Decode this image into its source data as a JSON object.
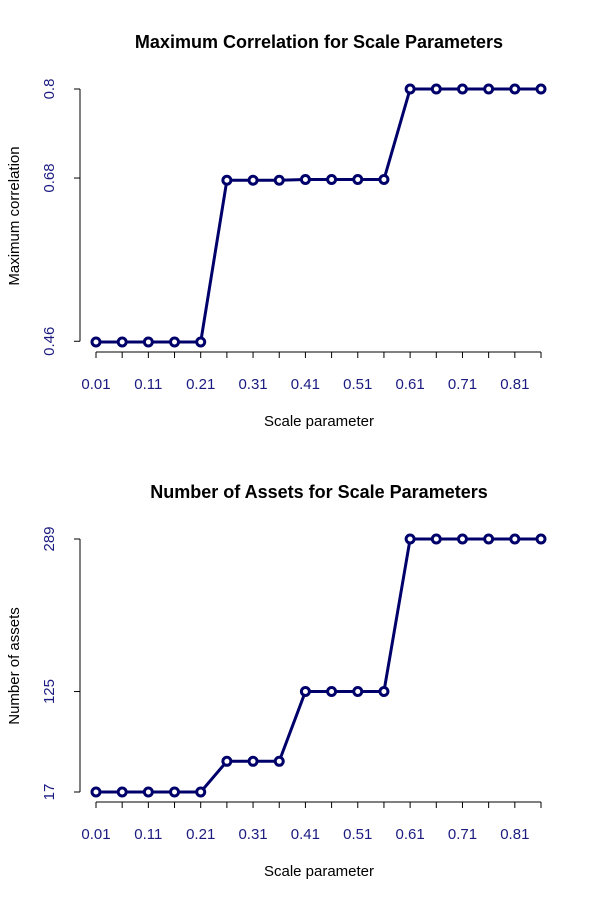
{
  "colors": {
    "series": "#00006B",
    "tick_text": "#1a1a80",
    "axis": "#000000"
  },
  "chart_data": [
    {
      "type": "line",
      "title": "Maximum Correlation for Scale Parameters",
      "xlabel": "Scale parameter",
      "ylabel": "Maximum correlation",
      "x": [
        0.01,
        0.06,
        0.11,
        0.16,
        0.21,
        0.26,
        0.31,
        0.36,
        0.41,
        0.46,
        0.51,
        0.56,
        0.61,
        0.66,
        0.71,
        0.76,
        0.81,
        0.86
      ],
      "x_tick_labels": [
        "0.01",
        "0.11",
        "0.21",
        "0.31",
        "0.41",
        "0.51",
        "0.61",
        "0.71",
        "0.81"
      ],
      "x_tick_values": [
        0.01,
        0.11,
        0.21,
        0.31,
        0.41,
        0.51,
        0.61,
        0.71,
        0.81
      ],
      "series": [
        {
          "values": [
            0.459,
            0.459,
            0.459,
            0.459,
            0.459,
            0.677,
            0.677,
            0.677,
            0.678,
            0.678,
            0.678,
            0.678,
            0.8,
            0.8,
            0.8,
            0.8,
            0.8,
            0.8
          ]
        }
      ],
      "y_ticks": [
        0.46,
        0.68,
        0.8
      ],
      "y_tick_labels": [
        "0.46",
        "0.68",
        "0.8"
      ],
      "xlim": [
        0.01,
        0.86
      ],
      "ylim": [
        0.459,
        0.8
      ],
      "grid": false,
      "legend": "none"
    },
    {
      "type": "line",
      "title": "Number of Assets for Scale Parameters",
      "xlabel": "Scale parameter",
      "ylabel": "Number of assets",
      "x": [
        0.01,
        0.06,
        0.11,
        0.16,
        0.21,
        0.26,
        0.31,
        0.36,
        0.41,
        0.46,
        0.51,
        0.56,
        0.61,
        0.66,
        0.71,
        0.76,
        0.81,
        0.86
      ],
      "x_tick_labels": [
        "0.01",
        "0.11",
        "0.21",
        "0.31",
        "0.41",
        "0.51",
        "0.61",
        "0.71",
        "0.81"
      ],
      "x_tick_values": [
        0.01,
        0.11,
        0.21,
        0.31,
        0.41,
        0.51,
        0.61,
        0.71,
        0.81
      ],
      "series": [
        {
          "values": [
            17,
            17,
            17,
            17,
            17,
            50,
            50,
            50,
            125,
            125,
            125,
            125,
            289,
            289,
            289,
            289,
            289,
            289
          ]
        }
      ],
      "y_ticks": [
        17,
        125,
        289
      ],
      "y_tick_labels": [
        "17",
        "125",
        "289"
      ],
      "xlim": [
        0.01,
        0.86
      ],
      "ylim": [
        17,
        289
      ],
      "grid": false,
      "legend": "none"
    }
  ]
}
